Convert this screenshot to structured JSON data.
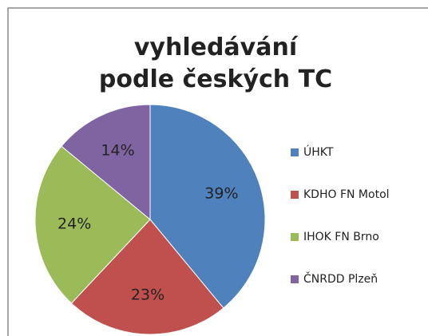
{
  "chart_data": {
    "type": "pie",
    "title": "vyhledávání podle českých TC",
    "categories": [
      "ÚHKT",
      "KDHO FN Motol",
      "IHOK FN Brno",
      "ČNRDD Plzeň"
    ],
    "values": [
      39,
      23,
      24,
      14
    ],
    "value_labels": [
      "39%",
      "23%",
      "24%",
      "14%"
    ],
    "colors": [
      "#4f81bd",
      "#c0504d",
      "#9bbb59",
      "#8064a2"
    ],
    "legend": "right"
  }
}
